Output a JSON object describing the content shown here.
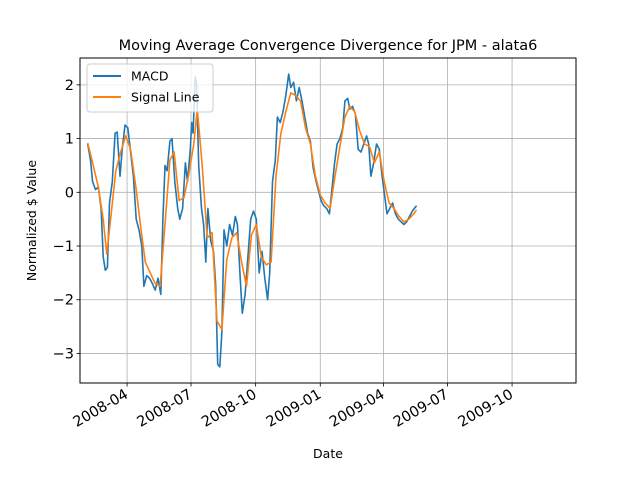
{
  "chart_data": {
    "type": "line",
    "title": "Moving Average Convergence Divergence for JPM - alata6",
    "xlabel": "Date",
    "ylabel": "Normalized $ Value",
    "xlim": [
      "2008-01-25",
      "2009-12-31"
    ],
    "ylim": [
      -3.55,
      2.5
    ],
    "grid": true,
    "legend_position": "top-left",
    "x_ticks": [
      "2008-04",
      "2008-07",
      "2008-10",
      "2009-01",
      "2009-04",
      "2009-07",
      "2009-10"
    ],
    "y_ticks": [
      2,
      1,
      0,
      -1,
      -2,
      -3
    ],
    "y_tick_labels": [
      "2",
      "1",
      "0",
      "−1",
      "−2",
      "−3"
    ],
    "series": [
      {
        "name": "MACD",
        "color": "#1f77b4",
        "points": [
          [
            "2008-02-05",
            0.9
          ],
          [
            "2008-02-09",
            0.6
          ],
          [
            "2008-02-12",
            0.2
          ],
          [
            "2008-02-16",
            0.05
          ],
          [
            "2008-02-20",
            0.1
          ],
          [
            "2008-02-24",
            -0.3
          ],
          [
            "2008-02-27",
            -1.2
          ],
          [
            "2008-03-01",
            -1.45
          ],
          [
            "2008-03-04",
            -1.4
          ],
          [
            "2008-03-07",
            -0.2
          ],
          [
            "2008-03-11",
            0.2
          ],
          [
            "2008-03-15",
            1.1
          ],
          [
            "2008-03-18",
            1.12
          ],
          [
            "2008-03-22",
            0.3
          ],
          [
            "2008-03-25",
            0.8
          ],
          [
            "2008-03-29",
            1.25
          ],
          [
            "2008-04-02",
            1.2
          ],
          [
            "2008-04-06",
            0.75
          ],
          [
            "2008-04-10",
            0.3
          ],
          [
            "2008-04-14",
            -0.5
          ],
          [
            "2008-04-18",
            -0.7
          ],
          [
            "2008-04-22",
            -1.0
          ],
          [
            "2008-04-25",
            -1.75
          ],
          [
            "2008-04-29",
            -1.55
          ],
          [
            "2008-05-03",
            -1.6
          ],
          [
            "2008-05-07",
            -1.7
          ],
          [
            "2008-05-11",
            -1.82
          ],
          [
            "2008-05-15",
            -1.6
          ],
          [
            "2008-05-19",
            -1.9
          ],
          [
            "2008-05-22",
            -0.5
          ],
          [
            "2008-05-25",
            0.5
          ],
          [
            "2008-05-28",
            0.4
          ],
          [
            "2008-06-01",
            0.95
          ],
          [
            "2008-06-04",
            1.0
          ],
          [
            "2008-06-08",
            0.2
          ],
          [
            "2008-06-12",
            -0.3
          ],
          [
            "2008-06-15",
            -0.5
          ],
          [
            "2008-06-19",
            -0.3
          ],
          [
            "2008-06-23",
            0.55
          ],
          [
            "2008-06-26",
            0.2
          ],
          [
            "2008-06-30",
            0.8
          ],
          [
            "2008-07-02",
            1.3
          ],
          [
            "2008-07-04",
            1.1
          ],
          [
            "2008-07-07",
            2.15
          ],
          [
            "2008-07-09",
            2.0
          ],
          [
            "2008-07-12",
            0.5
          ],
          [
            "2008-07-16",
            -0.3
          ],
          [
            "2008-07-19",
            -0.6
          ],
          [
            "2008-07-22",
            -1.3
          ],
          [
            "2008-07-25",
            -0.3
          ],
          [
            "2008-07-29",
            -0.9
          ],
          [
            "2008-08-02",
            -1.1
          ],
          [
            "2008-08-05",
            -1.7
          ],
          [
            "2008-08-08",
            -3.2
          ],
          [
            "2008-08-11",
            -3.25
          ],
          [
            "2008-08-14",
            -2.6
          ],
          [
            "2008-08-17",
            -0.7
          ],
          [
            "2008-08-21",
            -1.0
          ],
          [
            "2008-08-25",
            -0.6
          ],
          [
            "2008-08-29",
            -0.8
          ],
          [
            "2008-09-02",
            -0.45
          ],
          [
            "2008-09-05",
            -0.6
          ],
          [
            "2008-09-09",
            -1.6
          ],
          [
            "2008-09-12",
            -2.25
          ],
          [
            "2008-09-16",
            -1.9
          ],
          [
            "2008-09-20",
            -1.2
          ],
          [
            "2008-09-24",
            -0.5
          ],
          [
            "2008-09-28",
            -0.35
          ],
          [
            "2008-10-02",
            -0.5
          ],
          [
            "2008-10-06",
            -1.5
          ],
          [
            "2008-10-10",
            -1.1
          ],
          [
            "2008-10-14",
            -1.6
          ],
          [
            "2008-10-18",
            -2.0
          ],
          [
            "2008-10-21",
            -1.5
          ],
          [
            "2008-10-25",
            0.2
          ],
          [
            "2008-10-29",
            0.6
          ],
          [
            "2008-11-01",
            1.4
          ],
          [
            "2008-11-05",
            1.3
          ],
          [
            "2008-11-09",
            1.5
          ],
          [
            "2008-11-13",
            1.8
          ],
          [
            "2008-11-17",
            2.2
          ],
          [
            "2008-11-20",
            1.95
          ],
          [
            "2008-11-24",
            2.05
          ],
          [
            "2008-11-28",
            1.7
          ],
          [
            "2008-12-02",
            1.95
          ],
          [
            "2008-12-06",
            1.7
          ],
          [
            "2008-12-10",
            1.4
          ],
          [
            "2008-12-14",
            1.1
          ],
          [
            "2008-12-18",
            0.95
          ],
          [
            "2008-12-22",
            0.45
          ],
          [
            "2008-12-26",
            0.2
          ],
          [
            "2008-12-30",
            0.0
          ],
          [
            "2009-01-02",
            -0.15
          ],
          [
            "2009-01-06",
            -0.25
          ],
          [
            "2009-01-10",
            -0.3
          ],
          [
            "2009-01-14",
            -0.4
          ],
          [
            "2009-01-18",
            0.1
          ],
          [
            "2009-01-21",
            0.5
          ],
          [
            "2009-01-25",
            0.9
          ],
          [
            "2009-01-29",
            1.0
          ],
          [
            "2009-02-02",
            1.2
          ],
          [
            "2009-02-05",
            1.7
          ],
          [
            "2009-02-09",
            1.75
          ],
          [
            "2009-02-12",
            1.55
          ],
          [
            "2009-02-16",
            1.6
          ],
          [
            "2009-02-20",
            1.45
          ],
          [
            "2009-02-24",
            0.8
          ],
          [
            "2009-02-28",
            0.75
          ],
          [
            "2009-03-04",
            0.9
          ],
          [
            "2009-03-08",
            1.05
          ],
          [
            "2009-03-11",
            0.9
          ],
          [
            "2009-03-14",
            0.3
          ],
          [
            "2009-03-18",
            0.55
          ],
          [
            "2009-03-22",
            0.9
          ],
          [
            "2009-03-26",
            0.8
          ],
          [
            "2009-03-30",
            0.3
          ],
          [
            "2009-04-03",
            -0.1
          ],
          [
            "2009-04-06",
            -0.4
          ],
          [
            "2009-04-10",
            -0.3
          ],
          [
            "2009-04-14",
            -0.2
          ],
          [
            "2009-04-18",
            -0.4
          ],
          [
            "2009-04-22",
            -0.5
          ],
          [
            "2009-04-26",
            -0.55
          ],
          [
            "2009-04-30",
            -0.6
          ],
          [
            "2009-05-04",
            -0.55
          ],
          [
            "2009-05-08",
            -0.45
          ],
          [
            "2009-05-12",
            -0.35
          ],
          [
            "2009-05-15",
            -0.3
          ],
          [
            "2009-05-18",
            -0.25
          ]
        ]
      },
      {
        "name": "Signal Line",
        "color": "#ff7f0e",
        "points": [
          [
            "2008-02-05",
            0.92
          ],
          [
            "2008-02-12",
            0.55
          ],
          [
            "2008-02-20",
            0.1
          ],
          [
            "2008-02-27",
            -0.5
          ],
          [
            "2008-03-03",
            -1.15
          ],
          [
            "2008-03-09",
            -0.45
          ],
          [
            "2008-03-16",
            0.4
          ],
          [
            "2008-03-23",
            0.75
          ],
          [
            "2008-03-30",
            1.05
          ],
          [
            "2008-04-06",
            0.8
          ],
          [
            "2008-04-14",
            0.05
          ],
          [
            "2008-04-20",
            -0.6
          ],
          [
            "2008-04-27",
            -1.3
          ],
          [
            "2008-05-04",
            -1.5
          ],
          [
            "2008-05-11",
            -1.7
          ],
          [
            "2008-05-18",
            -1.75
          ],
          [
            "2008-05-25",
            -0.6
          ],
          [
            "2008-06-01",
            0.6
          ],
          [
            "2008-06-07",
            0.75
          ],
          [
            "2008-06-14",
            -0.15
          ],
          [
            "2008-06-21",
            -0.1
          ],
          [
            "2008-06-28",
            0.35
          ],
          [
            "2008-07-05",
            0.9
          ],
          [
            "2008-07-10",
            1.55
          ],
          [
            "2008-07-17",
            0.5
          ],
          [
            "2008-07-24",
            -0.85
          ],
          [
            "2008-07-31",
            -0.75
          ],
          [
            "2008-08-07",
            -2.4
          ],
          [
            "2008-08-14",
            -2.55
          ],
          [
            "2008-08-21",
            -1.25
          ],
          [
            "2008-08-28",
            -0.85
          ],
          [
            "2008-09-04",
            -0.75
          ],
          [
            "2008-09-11",
            -1.3
          ],
          [
            "2008-09-18",
            -1.75
          ],
          [
            "2008-09-25",
            -0.8
          ],
          [
            "2008-10-02",
            -0.6
          ],
          [
            "2008-10-09",
            -1.2
          ],
          [
            "2008-10-16",
            -1.35
          ],
          [
            "2008-10-23",
            -1.3
          ],
          [
            "2008-10-30",
            0.3
          ],
          [
            "2008-11-06",
            1.1
          ],
          [
            "2008-11-13",
            1.5
          ],
          [
            "2008-11-20",
            1.85
          ],
          [
            "2008-11-27",
            1.8
          ],
          [
            "2008-12-04",
            1.7
          ],
          [
            "2008-12-11",
            1.2
          ],
          [
            "2008-12-18",
            0.9
          ],
          [
            "2008-12-25",
            0.3
          ],
          [
            "2009-01-01",
            -0.05
          ],
          [
            "2009-01-08",
            -0.2
          ],
          [
            "2009-01-15",
            -0.3
          ],
          [
            "2009-01-22",
            0.3
          ],
          [
            "2009-01-29",
            0.85
          ],
          [
            "2009-02-05",
            1.4
          ],
          [
            "2009-02-12",
            1.6
          ],
          [
            "2009-02-19",
            1.5
          ],
          [
            "2009-02-26",
            1.15
          ],
          [
            "2009-03-05",
            0.9
          ],
          [
            "2009-03-12",
            0.85
          ],
          [
            "2009-03-19",
            0.55
          ],
          [
            "2009-03-26",
            0.75
          ],
          [
            "2009-04-02",
            0.2
          ],
          [
            "2009-04-09",
            -0.2
          ],
          [
            "2009-04-16",
            -0.3
          ],
          [
            "2009-04-23",
            -0.45
          ],
          [
            "2009-04-30",
            -0.55
          ],
          [
            "2009-05-07",
            -0.5
          ],
          [
            "2009-05-14",
            -0.4
          ],
          [
            "2009-05-18",
            -0.33
          ]
        ]
      }
    ]
  }
}
